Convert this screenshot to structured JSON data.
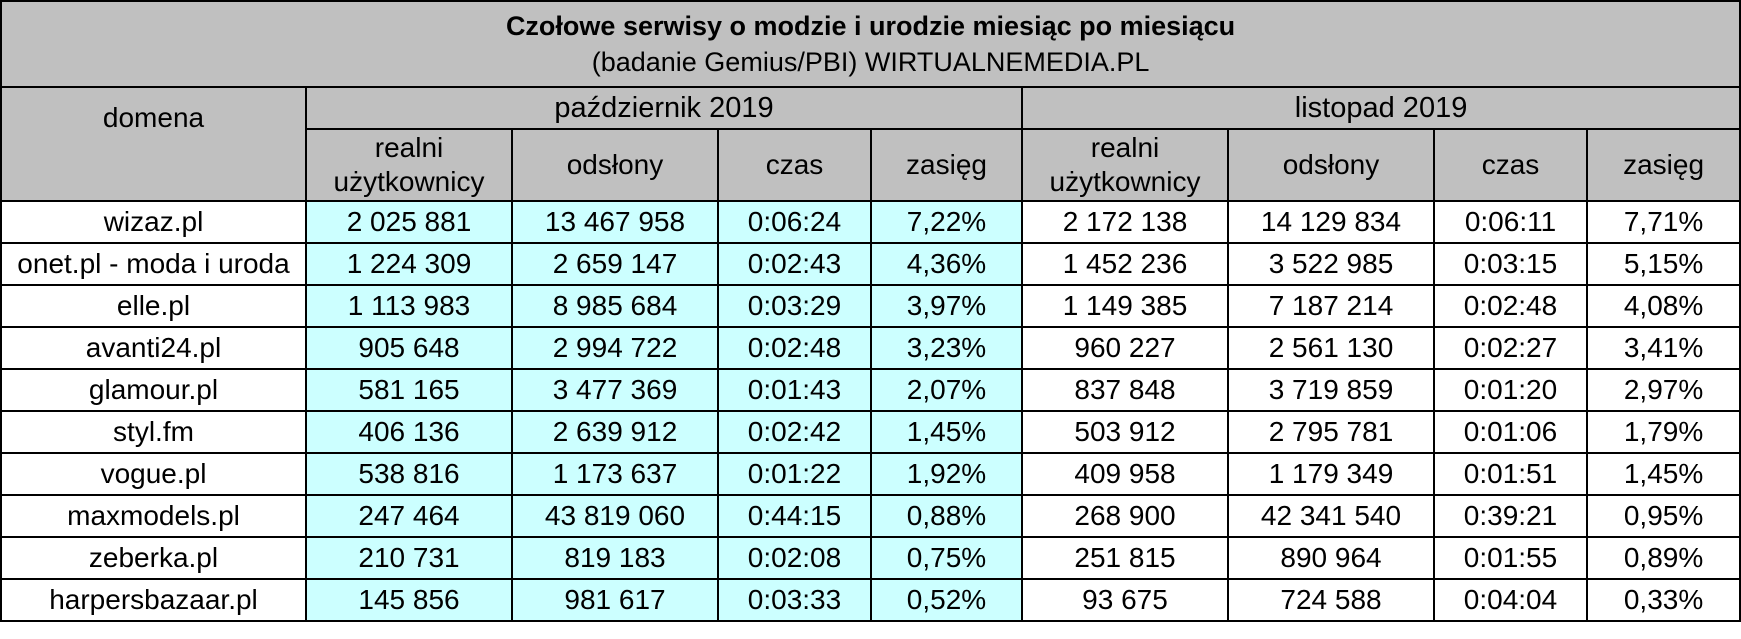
{
  "title": "Czołowe serwisy o modzie i urodzie miesiąc po miesiącu",
  "subtitle": "(badanie Gemius/PBI) WIRTUALNEMEDIA.PL",
  "domain_header": "domena",
  "months": [
    "październik 2019",
    "listopad 2019"
  ],
  "columns": [
    "realni użytkownicy",
    "odsłony",
    "czas",
    "zasięg"
  ],
  "colors": {
    "header_bg": "#c0c0c0",
    "october_bg": "#ccffff",
    "november_bg": "#ffffff"
  },
  "rows": [
    {
      "domain": "wizaz.pl",
      "oct": [
        "2 025 881",
        "13 467 958",
        "0:06:24",
        "7,22%"
      ],
      "nov": [
        "2 172 138",
        "14 129 834",
        "0:06:11",
        "7,71%"
      ]
    },
    {
      "domain": "onet.pl - moda i uroda",
      "oct": [
        "1 224 309",
        "2 659 147",
        "0:02:43",
        "4,36%"
      ],
      "nov": [
        "1 452 236",
        "3 522 985",
        "0:03:15",
        "5,15%"
      ]
    },
    {
      "domain": "elle.pl",
      "oct": [
        "1 113 983",
        "8 985 684",
        "0:03:29",
        "3,97%"
      ],
      "nov": [
        "1 149 385",
        "7 187 214",
        "0:02:48",
        "4,08%"
      ]
    },
    {
      "domain": "avanti24.pl",
      "oct": [
        "905 648",
        "2 994 722",
        "0:02:48",
        "3,23%"
      ],
      "nov": [
        "960 227",
        "2 561 130",
        "0:02:27",
        "3,41%"
      ]
    },
    {
      "domain": "glamour.pl",
      "oct": [
        "581 165",
        "3 477 369",
        "0:01:43",
        "2,07%"
      ],
      "nov": [
        "837 848",
        "3 719 859",
        "0:01:20",
        "2,97%"
      ]
    },
    {
      "domain": "styl.fm",
      "oct": [
        "406 136",
        "2 639 912",
        "0:02:42",
        "1,45%"
      ],
      "nov": [
        "503 912",
        "2 795 781",
        "0:01:06",
        "1,79%"
      ]
    },
    {
      "domain": "vogue.pl",
      "oct": [
        "538 816",
        "1 173 637",
        "0:01:22",
        "1,92%"
      ],
      "nov": [
        "409 958",
        "1 179 349",
        "0:01:51",
        "1,45%"
      ]
    },
    {
      "domain": "maxmodels.pl",
      "oct": [
        "247 464",
        "43 819 060",
        "0:44:15",
        "0,88%"
      ],
      "nov": [
        "268 900",
        "42 341 540",
        "0:39:21",
        "0,95%"
      ]
    },
    {
      "domain": "zeberka.pl",
      "oct": [
        "210 731",
        "819 183",
        "0:02:08",
        "0,75%"
      ],
      "nov": [
        "251 815",
        "890 964",
        "0:01:55",
        "0,89%"
      ]
    },
    {
      "domain": "harpersbazaar.pl",
      "oct": [
        "145 856",
        "981 617",
        "0:03:33",
        "0,52%"
      ],
      "nov": [
        "93 675",
        "724 588",
        "0:04:04",
        "0,33%"
      ]
    }
  ]
}
